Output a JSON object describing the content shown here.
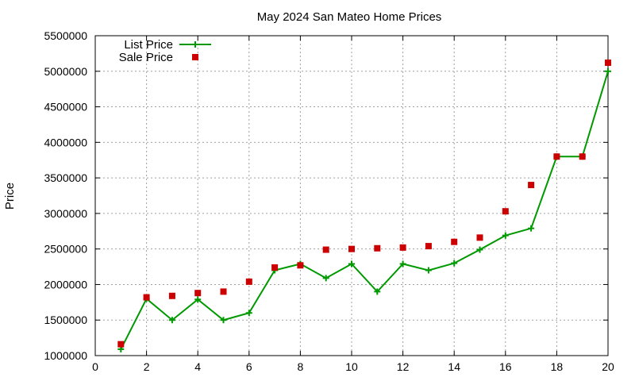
{
  "chart_data": {
    "type": "line",
    "title": "May 2024 San Mateo Home Prices",
    "xlabel": "",
    "ylabel": "Price",
    "xlim": [
      0,
      20
    ],
    "ylim": [
      1000000,
      5500000
    ],
    "xticks": [
      0,
      2,
      4,
      6,
      8,
      10,
      12,
      14,
      16,
      18,
      20
    ],
    "yticks": [
      1000000,
      1500000,
      2000000,
      2500000,
      3000000,
      3500000,
      4000000,
      4500000,
      5000000,
      5500000
    ],
    "grid": true,
    "legend_position": "top-left",
    "series": [
      {
        "name": "List Price",
        "style": "linespoints",
        "marker": "plus",
        "color": "#009900",
        "x": [
          1,
          2,
          3,
          4,
          5,
          6,
          7,
          8,
          9,
          10,
          11,
          12,
          13,
          14,
          15,
          16,
          17,
          18,
          19,
          20
        ],
        "values": [
          1090000,
          1800000,
          1500000,
          1790000,
          1500000,
          1600000,
          2200000,
          2290000,
          2090000,
          2290000,
          1900000,
          2290000,
          2200000,
          2300000,
          2490000,
          2690000,
          2790000,
          3800000,
          3800000,
          5000000
        ]
      },
      {
        "name": "Sale Price",
        "style": "points",
        "marker": "square",
        "color": "#cc0000",
        "x": [
          1,
          2,
          3,
          4,
          5,
          6,
          7,
          8,
          9,
          10,
          11,
          12,
          13,
          14,
          15,
          16,
          17,
          18,
          19,
          20
        ],
        "values": [
          1160000,
          1820000,
          1840000,
          1880000,
          1900000,
          2040000,
          2240000,
          2270000,
          2490000,
          2500000,
          2510000,
          2520000,
          2540000,
          2600000,
          2660000,
          3030000,
          3400000,
          3800000,
          3800000,
          5120000
        ]
      }
    ]
  }
}
